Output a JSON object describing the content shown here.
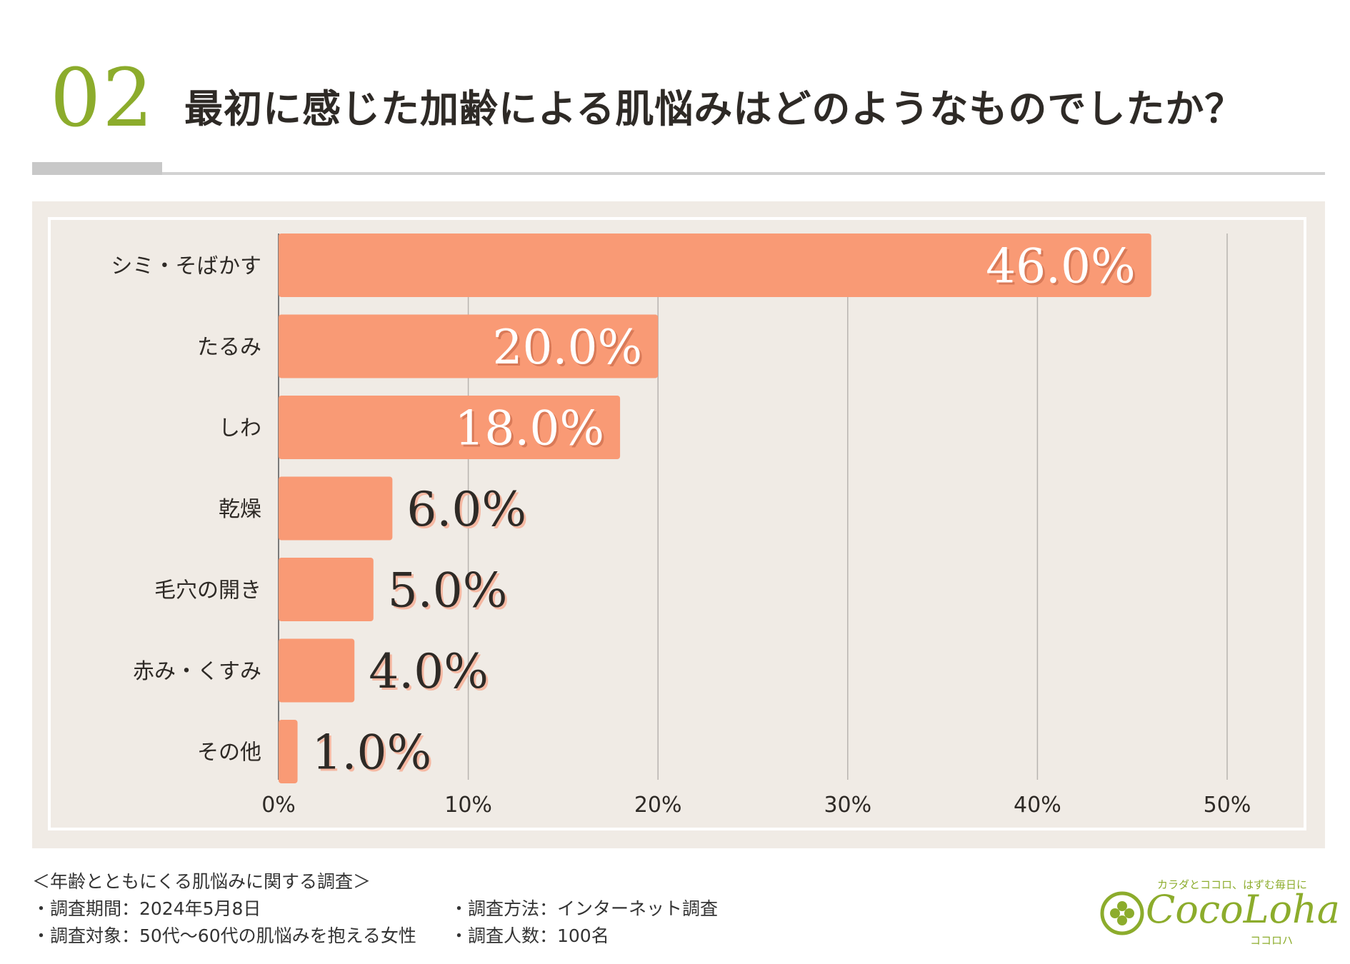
{
  "header": {
    "question_number": "02",
    "title": "最初に感じた加齢による肌悩みはどのようなものでしたか？"
  },
  "colors": {
    "accent": "#8cac2c",
    "bar": "#f99a75",
    "panel": "#f0ebe5",
    "value_inside": "#ffffff",
    "value_outside": "#2e2a26",
    "value_shadow": "#f5b8a2"
  },
  "chart_data": {
    "type": "bar",
    "orientation": "horizontal",
    "categories": [
      "シミ・そばかす",
      "たるみ",
      "しわ",
      "乾燥",
      "毛穴の開き",
      "赤み・くすみ",
      "その他"
    ],
    "values": [
      46.0,
      20.0,
      18.0,
      6.0,
      5.0,
      4.0,
      1.0
    ],
    "value_labels": [
      "46.0%",
      "20.0%",
      "18.0%",
      "6.0%",
      "5.0%",
      "4.0%",
      "1.0%"
    ],
    "xlim": [
      0,
      50
    ],
    "x_ticks": [
      0,
      10,
      20,
      30,
      40,
      50
    ],
    "x_tick_labels": [
      "0%",
      "10%",
      "20%",
      "30%",
      "40%",
      "50%"
    ],
    "grid": true,
    "title": "",
    "xlabel": "",
    "ylabel": ""
  },
  "footer": {
    "survey_title": "＜年齢とともにくる肌悩みに関する調査＞",
    "period": "・調査期間：2024年5月8日",
    "target": "・調査対象：50代〜60代の肌悩みを抱える女性",
    "method": "・調査方法：インターネット調査",
    "count": "・調査人数：100名"
  },
  "logo": {
    "tagline": "カラダとココロ、はずむ毎日に",
    "wordmark": "CocoLoha",
    "kana": "ココロハ"
  }
}
